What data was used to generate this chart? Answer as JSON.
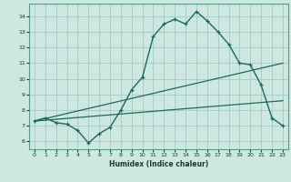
{
  "xlabel": "Humidex (Indice chaleur)",
  "background_color": "#cce8e0",
  "grid_color": "#aacfc8",
  "line_color": "#1a6b5a",
  "xlim": [
    -0.5,
    23.5
  ],
  "ylim": [
    5.5,
    14.8
  ],
  "xticks": [
    0,
    1,
    2,
    3,
    4,
    5,
    6,
    7,
    8,
    9,
    10,
    11,
    12,
    13,
    14,
    15,
    16,
    17,
    18,
    19,
    20,
    21,
    22,
    23
  ],
  "yticks": [
    6,
    7,
    8,
    9,
    10,
    11,
    12,
    13,
    14
  ],
  "line1_x": [
    0,
    1,
    2,
    3,
    4,
    5,
    6,
    7,
    8,
    9,
    10,
    11,
    12,
    13,
    14,
    15,
    16,
    17,
    18,
    19,
    20,
    21,
    22,
    23
  ],
  "line1_y": [
    7.3,
    7.5,
    7.2,
    7.1,
    6.7,
    5.9,
    6.5,
    6.9,
    8.0,
    9.3,
    10.1,
    12.7,
    13.5,
    13.8,
    13.5,
    14.3,
    13.7,
    13.0,
    12.2,
    11.0,
    10.9,
    9.6,
    7.5,
    7.0
  ],
  "line2_x": [
    0,
    23
  ],
  "line2_y": [
    7.3,
    11.0
  ],
  "line3_x": [
    0,
    23
  ],
  "line3_y": [
    7.3,
    8.6
  ]
}
